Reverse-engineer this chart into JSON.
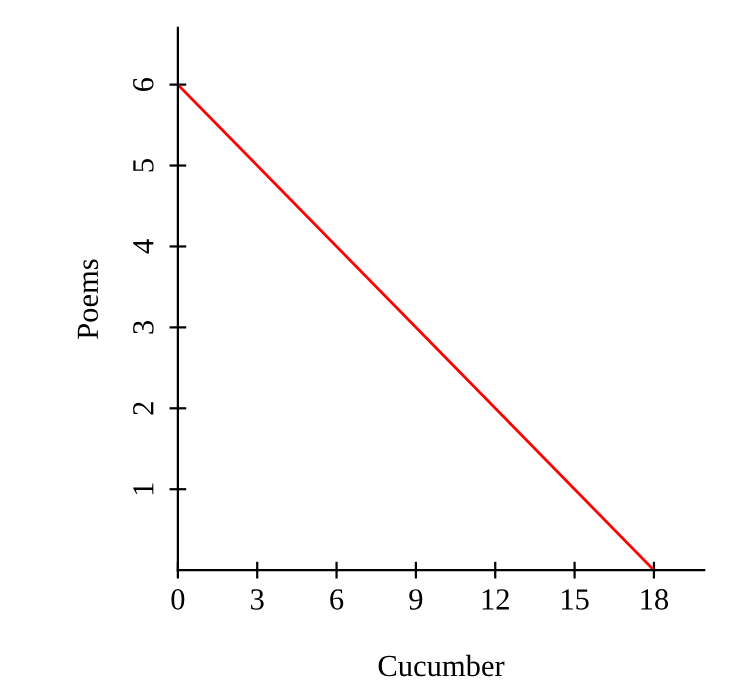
{
  "chart_data": {
    "type": "line",
    "xlabel": "Cucumber",
    "ylabel": "Poems",
    "x": [
      0,
      18
    ],
    "series": [
      {
        "color": "#ff0000",
        "values": [
          6,
          0
        ]
      }
    ],
    "xlim": [
      0,
      19.9
    ],
    "xticks": [
      0,
      3,
      6,
      9,
      12,
      15,
      18
    ],
    "ylim": [
      0,
      6.7
    ],
    "yticks": [
      1,
      2,
      3,
      4,
      5,
      6
    ],
    "grid": false,
    "legend": false
  }
}
